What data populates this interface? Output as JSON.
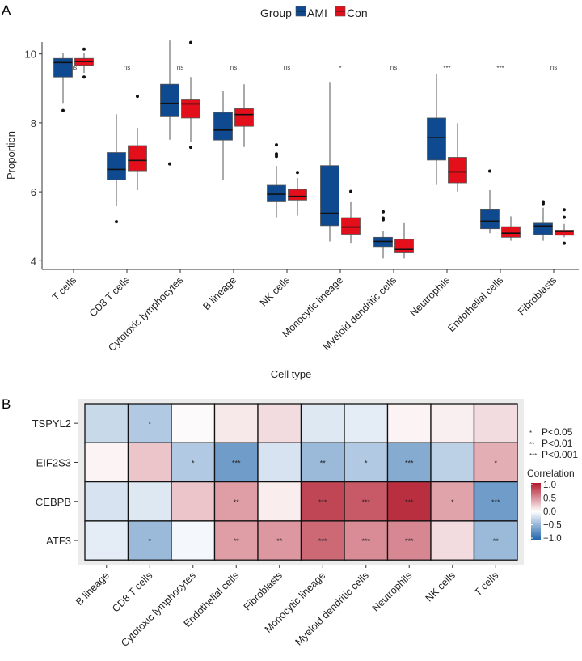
{
  "chart_data": [
    {
      "panel": "A",
      "type": "box",
      "xlabel": "Cell type",
      "ylabel": "Proportion",
      "ylim": [
        3.75,
        10.7
      ],
      "yticks": [
        4,
        6,
        8,
        10
      ],
      "legend": {
        "title": "Group",
        "placement": "top",
        "entries": [
          {
            "name": "AMI",
            "color": "#0F4A91"
          },
          {
            "name": "Con",
            "color": "#E3101B"
          }
        ]
      },
      "categories": [
        "T cells",
        "CD8 T cells",
        "Cytotoxic lymphocytes",
        "B lineage",
        "NK cells",
        "Monocytic lineage",
        "Myeloid dendritic cells",
        "Neutrophils",
        "Endothelial cells",
        "Fibroblasts"
      ],
      "significance": [
        "ns",
        "ns",
        "ns",
        "ns",
        "ns",
        "*",
        "ns",
        "***",
        "***",
        "ns"
      ],
      "series": [
        {
          "name": "AMI",
          "boxes": [
            {
              "low": 8.58,
              "q1": 9.33,
              "median": 9.75,
              "q3": 9.87,
              "high": 10.04,
              "outliers": [
                8.36
              ]
            },
            {
              "low": 5.58,
              "q1": 6.35,
              "median": 6.65,
              "q3": 7.14,
              "high": 8.25,
              "outliers": [
                5.13
              ]
            },
            {
              "low": 7.51,
              "q1": 8.2,
              "median": 8.57,
              "q3": 9.12,
              "high": 10.39,
              "outliers": [
                6.81
              ]
            },
            {
              "low": 6.34,
              "q1": 7.5,
              "median": 7.79,
              "q3": 8.3,
              "high": 8.92,
              "outliers": []
            },
            {
              "low": 5.26,
              "q1": 5.71,
              "median": 5.93,
              "q3": 6.19,
              "high": 6.75,
              "outliers": [
                7.36,
                7.1,
                7.03
              ]
            },
            {
              "low": 4.56,
              "q1": 5.02,
              "median": 5.38,
              "q3": 6.76,
              "high": 9.19,
              "outliers": []
            },
            {
              "low": 4.07,
              "q1": 4.41,
              "median": 4.56,
              "q3": 4.68,
              "high": 4.87,
              "outliers": [
                5.42,
                5.24,
                5.19
              ]
            },
            {
              "low": 6.2,
              "q1": 6.92,
              "median": 7.57,
              "q3": 8.14,
              "high": 9.41,
              "outliers": []
            },
            {
              "low": 4.8,
              "q1": 4.93,
              "median": 5.15,
              "q3": 5.5,
              "high": 6.05,
              "outliers": [
                6.6
              ]
            },
            {
              "low": 4.58,
              "q1": 4.76,
              "median": 5.01,
              "q3": 5.09,
              "high": 5.54,
              "outliers": [
                5.71,
                5.66
              ]
            }
          ]
        },
        {
          "name": "Con",
          "boxes": [
            {
              "low": 9.45,
              "q1": 9.67,
              "median": 9.78,
              "q3": 9.87,
              "high": 10.04,
              "outliers": [
                10.14,
                9.33
              ]
            },
            {
              "low": 6.05,
              "q1": 6.61,
              "median": 6.91,
              "q3": 7.34,
              "high": 7.86,
              "outliers": [
                8.77
              ]
            },
            {
              "low": 7.44,
              "q1": 8.14,
              "median": 8.55,
              "q3": 8.69,
              "high": 9.33,
              "outliers": [
                10.33,
                7.29
              ]
            },
            {
              "low": 7.3,
              "q1": 7.9,
              "median": 8.24,
              "q3": 8.41,
              "high": 9.12,
              "outliers": []
            },
            {
              "low": 5.31,
              "q1": 5.76,
              "median": 5.87,
              "q3": 6.07,
              "high": 6.4,
              "outliers": [
                6.56
              ]
            },
            {
              "low": 4.52,
              "q1": 4.77,
              "median": 4.98,
              "q3": 5.25,
              "high": 5.7,
              "outliers": [
                6.01
              ]
            },
            {
              "low": 4.07,
              "q1": 4.23,
              "median": 4.33,
              "q3": 4.62,
              "high": 5.09,
              "outliers": []
            },
            {
              "low": 6.01,
              "q1": 6.26,
              "median": 6.58,
              "q3": 7.0,
              "high": 7.99,
              "outliers": []
            },
            {
              "low": 4.58,
              "q1": 4.68,
              "median": 4.8,
              "q3": 4.99,
              "high": 5.29,
              "outliers": []
            },
            {
              "low": 4.68,
              "q1": 4.74,
              "median": 4.85,
              "q3": 4.89,
              "high": 5.07,
              "outliers": [
                5.48,
                5.26,
                4.51
              ]
            }
          ]
        }
      ]
    },
    {
      "panel": "B",
      "type": "heatmap",
      "rows": [
        "TSPYL2",
        "EIF2S3",
        "CEBPB",
        "ATF3"
      ],
      "columns": [
        "B lineage",
        "CD8 T cells",
        "Cytotoxic lymphocytes",
        "Endothelial cells",
        "Fibroblasts",
        "Monocytic lineage",
        "Myeloid dendritic cells",
        "Neutrophils",
        "NK cells",
        "T cells"
      ],
      "values": [
        [
          -0.25,
          -0.35,
          0.02,
          0.1,
          0.15,
          -0.15,
          -0.12,
          0.05,
          0.07,
          0.15
        ],
        [
          0.05,
          0.25,
          -0.35,
          -0.65,
          -0.18,
          -0.45,
          -0.35,
          -0.55,
          -0.3,
          0.35
        ],
        [
          -0.18,
          -0.15,
          0.25,
          0.42,
          0.08,
          0.8,
          0.72,
          0.9,
          0.4,
          -0.65
        ],
        [
          -0.12,
          -0.45,
          -0.05,
          0.42,
          0.45,
          0.65,
          0.5,
          0.52,
          0.15,
          -0.45
        ]
      ],
      "significance": [
        [
          "",
          "*",
          "",
          "",
          "",
          "",
          "",
          "",
          "",
          ""
        ],
        [
          "",
          "",
          "*",
          "***",
          "",
          "**",
          "*",
          "***",
          "",
          "*"
        ],
        [
          "",
          "",
          "",
          "**",
          "",
          "***",
          "***",
          "***",
          "*",
          "***"
        ],
        [
          "",
          "*",
          "",
          "**",
          "**",
          "***",
          "***",
          "***",
          "",
          "**"
        ]
      ],
      "significance_legend": [
        {
          "symbol": "*",
          "label": "P<0.05"
        },
        {
          "symbol": "**",
          "label": "P<0.01"
        },
        {
          "symbol": "***",
          "label": "P<0.001"
        }
      ],
      "colorbar": {
        "title": "Correlation",
        "range": [
          -1,
          1
        ],
        "ticks": [
          "1.0",
          "0.5",
          "0.0",
          "−0.5",
          "−1.0"
        ],
        "colors": {
          "low": "#2166AC",
          "mid": "#FFFFFF",
          "high": "#B2182B"
        }
      }
    }
  ]
}
